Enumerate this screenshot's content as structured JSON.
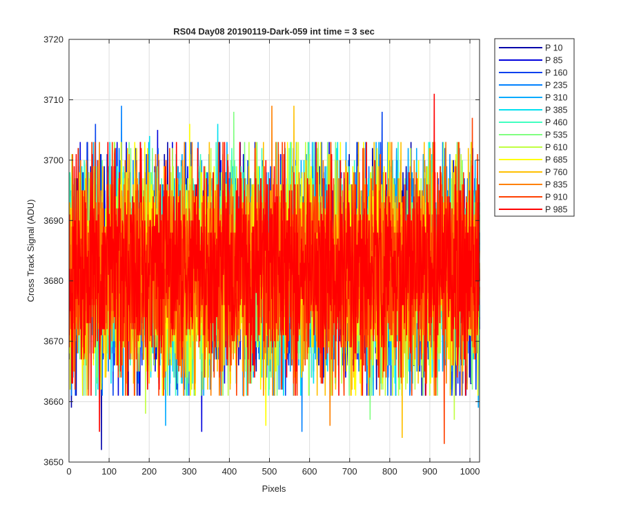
{
  "chart_data": {
    "type": "line",
    "title": "RS04 Day08 20190119-Dark-059 int time = 3 sec",
    "xlabel": "Pixels",
    "ylabel": "Cross Track Signal (ADU)",
    "xlim": [
      0,
      1024
    ],
    "ylim": [
      3650,
      3720
    ],
    "xticks": [
      0,
      100,
      200,
      300,
      400,
      500,
      600,
      700,
      800,
      900,
      1000
    ],
    "yticks": [
      3650,
      3660,
      3670,
      3680,
      3690,
      3700,
      3710,
      3720
    ],
    "grid": true,
    "legend_position": "outside-top-right",
    "noise": {
      "mean": 3682,
      "std": 8.5,
      "n_points": 1024
    },
    "series": [
      {
        "name": "P 10",
        "color": "#0000aa",
        "seed": 11,
        "peaks": [
          {
            "x": 80,
            "y": 3652
          },
          {
            "x": 5,
            "y": 3659
          }
        ]
      },
      {
        "name": "P 85",
        "color": "#0000dd",
        "seed": 23,
        "peaks": [
          {
            "x": 330,
            "y": 3655
          },
          {
            "x": 220,
            "y": 3705
          }
        ]
      },
      {
        "name": "P 160",
        "color": "#0040ee",
        "seed": 37,
        "peaks": [
          {
            "x": 65,
            "y": 3706
          },
          {
            "x": 780,
            "y": 3708
          }
        ]
      },
      {
        "name": "P 235",
        "color": "#0080ff",
        "seed": 41,
        "peaks": [
          {
            "x": 130,
            "y": 3709
          },
          {
            "x": 580,
            "y": 3655
          }
        ]
      },
      {
        "name": "P 310",
        "color": "#00aaff",
        "seed": 53,
        "peaks": [
          {
            "x": 240,
            "y": 3656
          },
          {
            "x": 1020,
            "y": 3659
          }
        ]
      },
      {
        "name": "P 385",
        "color": "#00e0f0",
        "seed": 67,
        "peaks": [
          {
            "x": 200,
            "y": 3704
          },
          {
            "x": 370,
            "y": 3706
          }
        ]
      },
      {
        "name": "P 460",
        "color": "#40ffc0",
        "seed": 71,
        "peaks": [
          {
            "x": 480,
            "y": 3702
          },
          {
            "x": 820,
            "y": 3703
          }
        ]
      },
      {
        "name": "P 535",
        "color": "#80ff80",
        "seed": 83,
        "peaks": [
          {
            "x": 410,
            "y": 3708
          },
          {
            "x": 750,
            "y": 3657
          }
        ]
      },
      {
        "name": "P 610",
        "color": "#c0ff40",
        "seed": 97,
        "peaks": [
          {
            "x": 190,
            "y": 3658
          },
          {
            "x": 960,
            "y": 3657
          }
        ]
      },
      {
        "name": "P 685",
        "color": "#ffff00",
        "seed": 101,
        "peaks": [
          {
            "x": 490,
            "y": 3656
          },
          {
            "x": 300,
            "y": 3706
          }
        ]
      },
      {
        "name": "P 760",
        "color": "#ffc000",
        "seed": 113,
        "peaks": [
          {
            "x": 560,
            "y": 3709
          },
          {
            "x": 830,
            "y": 3654
          }
        ]
      },
      {
        "name": "P 835",
        "color": "#ff8000",
        "seed": 127,
        "peaks": [
          {
            "x": 505,
            "y": 3709
          },
          {
            "x": 650,
            "y": 3656
          }
        ]
      },
      {
        "name": "P 910",
        "color": "#ff4000",
        "seed": 131,
        "peaks": [
          {
            "x": 1005,
            "y": 3707
          },
          {
            "x": 935,
            "y": 3653
          }
        ]
      },
      {
        "name": "P 985",
        "color": "#ff0000",
        "seed": 139,
        "peaks": [
          {
            "x": 910,
            "y": 3711
          },
          {
            "x": 75,
            "y": 3655
          }
        ]
      }
    ]
  }
}
